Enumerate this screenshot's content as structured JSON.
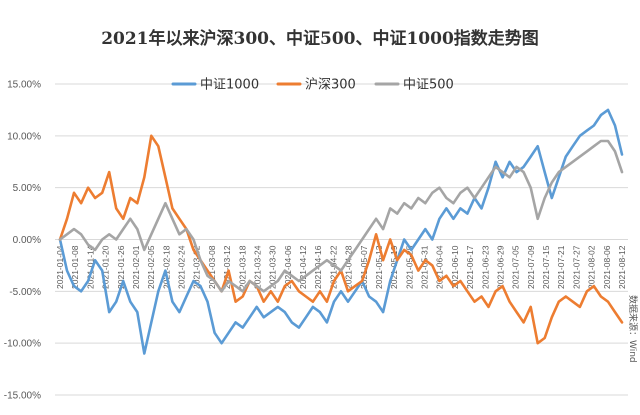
{
  "chart_data": {
    "type": "line",
    "title": "2021年以来沪深300、中证500、中证1000指数走势图",
    "source_note": "数据来源：Wind",
    "ylim": [
      -0.15,
      0.15
    ],
    "y_ticks": [
      -0.15,
      -0.1,
      -0.05,
      0.0,
      0.05,
      0.1,
      0.15
    ],
    "y_tick_labels": [
      "-15.00%",
      "-10.00%",
      "-5.00%",
      "0.00%",
      "5.00%",
      "10.00%",
      "15.00%"
    ],
    "grid": "horizontal",
    "legend_position": "top",
    "x_tick_labels": [
      "2021-01-04",
      "2021-01-08",
      "2021-01-14",
      "2021-01-20",
      "2021-01-26",
      "2021-02-01",
      "2021-02-05",
      "2021-02-18",
      "2021-02-24",
      "2021-03-02",
      "2021-03-08",
      "2021-03-12",
      "2021-03-18",
      "2021-03-24",
      "2021-03-30",
      "2021-04-06",
      "2021-04-12",
      "2021-04-16",
      "2021-04-22",
      "2021-04-28",
      "2021-05-07",
      "2021-05-13",
      "2021-05-19",
      "2021-05-25",
      "2021-05-31",
      "2021-06-04",
      "2021-06-10",
      "2021-06-17",
      "2021-06-23",
      "2021-06-29",
      "2021-07-05",
      "2021-07-09",
      "2021-07-15",
      "2021-07-21",
      "2021-07-27",
      "2021-08-02",
      "2021-08-06",
      "2021-08-12"
    ],
    "series": [
      {
        "name": "中证1000",
        "color": "#5b9bd5",
        "values": [
          0.0,
          -0.03,
          -0.045,
          -0.05,
          -0.04,
          -0.02,
          -0.03,
          -0.07,
          -0.06,
          -0.04,
          -0.06,
          -0.07,
          -0.11,
          -0.08,
          -0.05,
          -0.03,
          -0.06,
          -0.07,
          -0.055,
          -0.04,
          -0.045,
          -0.06,
          -0.09,
          -0.1,
          -0.09,
          -0.08,
          -0.085,
          -0.075,
          -0.065,
          -0.075,
          -0.07,
          -0.065,
          -0.07,
          -0.08,
          -0.085,
          -0.075,
          -0.065,
          -0.07,
          -0.08,
          -0.06,
          -0.05,
          -0.06,
          -0.05,
          -0.04,
          -0.055,
          -0.06,
          -0.07,
          -0.04,
          -0.02,
          0.0,
          -0.01,
          0.0,
          0.01,
          0.0,
          0.02,
          0.03,
          0.02,
          0.03,
          0.025,
          0.04,
          0.03,
          0.05,
          0.075,
          0.06,
          0.075,
          0.065,
          0.07,
          0.08,
          0.09,
          0.065,
          0.04,
          0.06,
          0.08,
          0.09,
          0.1,
          0.105,
          0.11,
          0.12,
          0.125,
          0.11,
          0.082
        ]
      },
      {
        "name": "沪深300",
        "color": "#ed7d31",
        "values": [
          0.0,
          0.02,
          0.045,
          0.035,
          0.05,
          0.04,
          0.045,
          0.065,
          0.03,
          0.02,
          0.04,
          0.035,
          0.06,
          0.1,
          0.09,
          0.06,
          0.03,
          0.02,
          0.01,
          -0.01,
          -0.02,
          -0.03,
          -0.04,
          -0.05,
          -0.03,
          -0.06,
          -0.055,
          -0.04,
          -0.045,
          -0.06,
          -0.05,
          -0.06,
          -0.045,
          -0.04,
          -0.05,
          -0.055,
          -0.06,
          -0.05,
          -0.06,
          -0.04,
          -0.03,
          -0.05,
          -0.045,
          -0.04,
          -0.02,
          0.005,
          -0.02,
          0.0,
          -0.02,
          -0.01,
          -0.015,
          -0.03,
          -0.02,
          -0.025,
          -0.04,
          -0.035,
          -0.045,
          -0.04,
          -0.05,
          -0.06,
          -0.055,
          -0.065,
          -0.05,
          -0.045,
          -0.06,
          -0.07,
          -0.08,
          -0.065,
          -0.1,
          -0.095,
          -0.075,
          -0.06,
          -0.055,
          -0.06,
          -0.065,
          -0.05,
          -0.045,
          -0.055,
          -0.06,
          -0.07,
          -0.08
        ]
      },
      {
        "name": "中证500",
        "color": "#a5a5a5",
        "values": [
          0.0,
          0.005,
          0.01,
          0.005,
          -0.005,
          -0.01,
          0.0,
          0.005,
          0.0,
          0.01,
          0.02,
          0.01,
          -0.01,
          0.005,
          0.02,
          0.035,
          0.02,
          0.005,
          0.01,
          0.0,
          -0.02,
          -0.035,
          -0.04,
          -0.05,
          -0.04,
          -0.045,
          -0.05,
          -0.04,
          -0.045,
          -0.05,
          -0.045,
          -0.04,
          -0.03,
          -0.035,
          -0.04,
          -0.035,
          -0.03,
          -0.025,
          -0.02,
          -0.025,
          -0.03,
          -0.02,
          -0.01,
          0.0,
          0.01,
          0.02,
          0.01,
          0.03,
          0.025,
          0.035,
          0.03,
          0.04,
          0.035,
          0.045,
          0.05,
          0.04,
          0.035,
          0.045,
          0.05,
          0.04,
          0.05,
          0.06,
          0.07,
          0.065,
          0.06,
          0.07,
          0.065,
          0.05,
          0.02,
          0.04,
          0.055,
          0.065,
          0.07,
          0.075,
          0.08,
          0.085,
          0.09,
          0.095,
          0.095,
          0.085,
          0.065
        ]
      }
    ]
  }
}
